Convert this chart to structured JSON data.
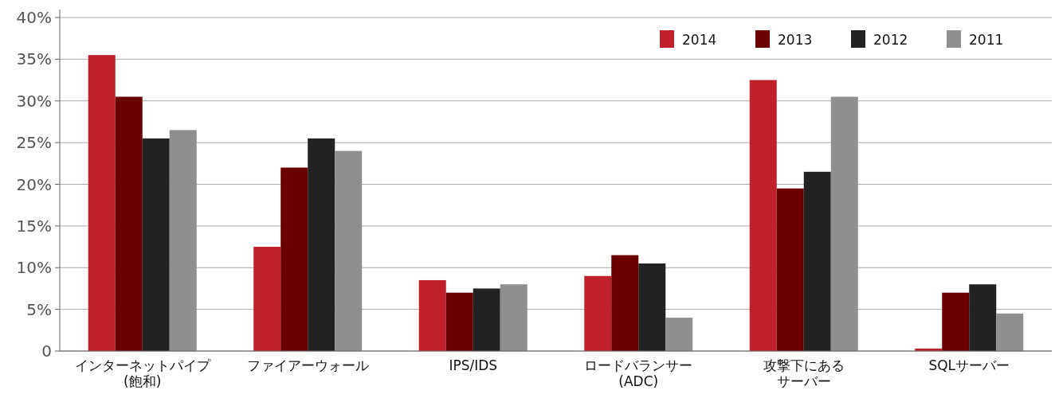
{
  "chart_data": {
    "type": "bar",
    "categories": [
      "インターネットパイプ\n(飽和)",
      "ファイアーウォール",
      "IPS/IDS",
      "ロードバランサー\n(ADC)",
      "攻撃下にあるサーバー",
      "SQLサーバー"
    ],
    "series": [
      {
        "name": "2014",
        "color": "#c0202a",
        "values": [
          35.5,
          12.5,
          8.5,
          9,
          32.5,
          0.3
        ]
      },
      {
        "name": "2013",
        "color": "#6b0000",
        "values": [
          30.5,
          22,
          7,
          11.5,
          19.5,
          7
        ]
      },
      {
        "name": "2012",
        "color": "#222222",
        "values": [
          25.5,
          25.5,
          7.5,
          10.5,
          21.5,
          8
        ]
      },
      {
        "name": "2011",
        "color": "#8f8f8f",
        "values": [
          26.5,
          24,
          8,
          4,
          30.5,
          4.5
        ]
      }
    ],
    "ylim": [
      0,
      40
    ],
    "yticks": [
      0,
      {
        "value": 5,
        "label": "5%"
      },
      {
        "value": 10,
        "label": "10%"
      },
      {
        "value": 15,
        "label": "15%"
      },
      {
        "value": 20,
        "label": "20%"
      },
      {
        "value": 25,
        "label": "25%"
      },
      {
        "value": 30,
        "label": "30%"
      },
      {
        "value": 35,
        "label": "35%"
      },
      {
        "value": 40,
        "label": "40%"
      }
    ],
    "grid": "y",
    "legend": "top right"
  }
}
